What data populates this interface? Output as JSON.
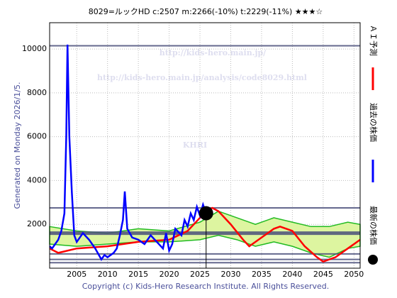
{
  "chart_data": {
    "type": "line",
    "title": "8029=ルックHD    c:2507   m:2266(-10%)   t:2229(-11%)   ★★★☆",
    "side_note": "Generated on Monday 2026/1/5.",
    "footer": "Copyright (c) Kids-Hero Research Institute. All Rights Reserved.",
    "watermarks": [
      "http://kids-hero.main.jp/",
      "http://kids-hero.main.jp/analysis/code8029.html",
      "KHRI"
    ],
    "xlim": [
      2000.6,
      2051
    ],
    "ylim": [
      0,
      11200
    ],
    "xticks": [
      2005,
      2010,
      2015,
      2020,
      2025,
      2030,
      2035,
      2040,
      2045,
      2050
    ],
    "yticks": [
      2000,
      4000,
      6000,
      8000,
      10000
    ],
    "grid": true,
    "series": [
      {
        "name": "ＡＩ予測",
        "color": "#ff0000",
        "x": [
          2000.6,
          2002,
          2005,
          2010,
          2015,
          2020,
          2023,
          2025,
          2026,
          2027,
          2028,
          2030,
          2032,
          2033,
          2035,
          2037,
          2038,
          2040,
          2042,
          2044,
          2045,
          2047,
          2049,
          2051
        ],
        "values": [
          900,
          700,
          900,
          1000,
          1200,
          1300,
          1700,
          2300,
          2600,
          2750,
          2600,
          2000,
          1300,
          1000,
          1400,
          1800,
          1900,
          1700,
          1000,
          500,
          300,
          500,
          900,
          1300
        ]
      },
      {
        "name": "過去の株価",
        "color": "#0000ff",
        "x": [
          2000.6,
          2001,
          2001.5,
          2002,
          2002.5,
          2003,
          2003.3,
          2003.5,
          2003.8,
          2004.2,
          2004.6,
          2005,
          2006,
          2007,
          2008,
          2009,
          2009.5,
          2010,
          2011,
          2011.5,
          2012,
          2012.5,
          2012.8,
          2013.2,
          2014,
          2015,
          2016,
          2017,
          2018,
          2019,
          2019.5,
          2020,
          2020.5,
          2021,
          2022,
          2022.5,
          2023,
          2023.5,
          2024,
          2024.5,
          2025,
          2025.5,
          2026
        ],
        "values": [
          1000,
          900,
          1100,
          1300,
          1700,
          2500,
          6000,
          10200,
          6000,
          3500,
          1500,
          1200,
          1600,
          1300,
          900,
          400,
          600,
          500,
          700,
          900,
          1500,
          2200,
          3500,
          1800,
          1400,
          1300,
          1100,
          1500,
          1200,
          900,
          1600,
          800,
          1100,
          1800,
          1500,
          2200,
          1900,
          2500,
          2200,
          2800,
          2400,
          2900,
          2500
        ]
      }
    ],
    "band": {
      "color": "#22bb22",
      "x": [
        2000.6,
        2005,
        2010,
        2015,
        2020,
        2025,
        2028,
        2031,
        2034,
        2037,
        2040,
        2043,
        2046,
        2049,
        2051
      ],
      "upper": [
        1900,
        1700,
        1600,
        1800,
        1700,
        2100,
        2600,
        2300,
        2000,
        2300,
        2100,
        1900,
        1900,
        2100,
        2000
      ],
      "lower": [
        1100,
        1000,
        1100,
        1200,
        1200,
        1300,
        1500,
        1300,
        1000,
        1200,
        1000,
        700,
        500,
        900,
        1000
      ]
    },
    "hlines": {
      "color": "#4a4f7a",
      "values": [
        10150,
        2750,
        1600,
        650,
        400,
        250
      ]
    },
    "latest": {
      "name": "最新の株価",
      "color": "#000000",
      "x": 2026,
      "value": 2507
    }
  }
}
